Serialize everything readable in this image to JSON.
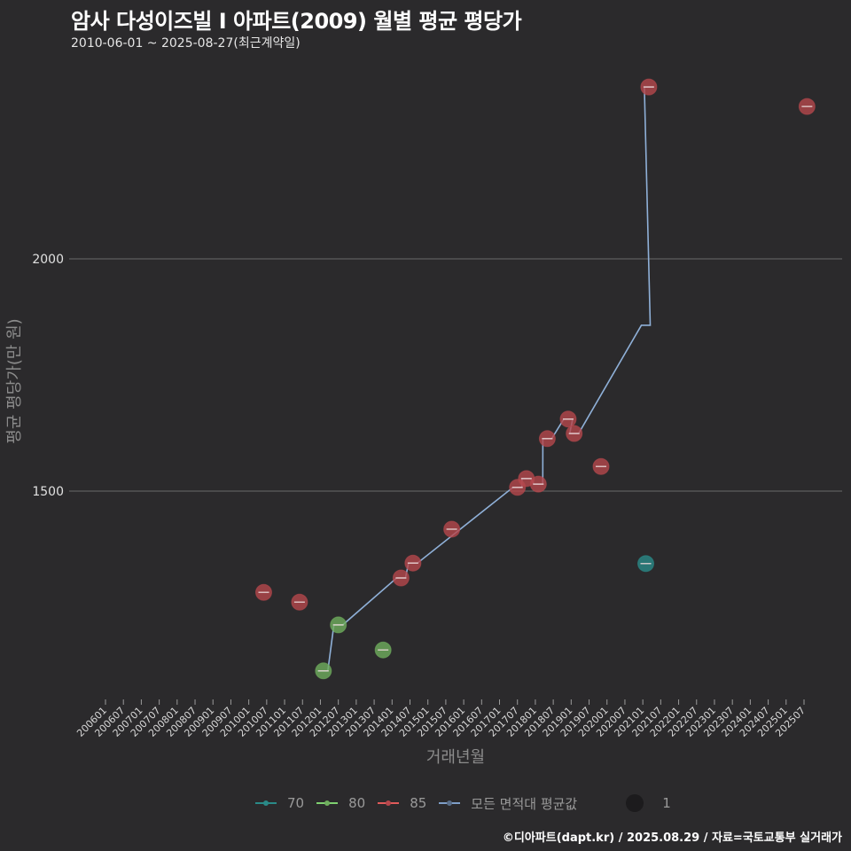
{
  "header": {
    "title": "암사 다성이즈빌 I  아파트(2009) 월별 평균 평당가",
    "subtitle": "2010-06-01 ~ 2025-08-27(최근계약일)"
  },
  "footer": {
    "credit": "©디아파트(dapt.kr) / 2025.08.29 / 자료=국토교통부 실거래가"
  },
  "legend": {
    "items": [
      {
        "label": "70",
        "color": "#2a8a88"
      },
      {
        "label": "80",
        "color": "#7fd070"
      },
      {
        "label": "85",
        "color": "#e05a5a"
      },
      {
        "label": "모든 면적대 평균값",
        "color": "#7f9fc8"
      }
    ],
    "size_label": "1"
  },
  "chart_data": {
    "type": "scatter",
    "title": "암사 다성이즈빌 I  아파트(2009) 월별 평균 평당가",
    "subtitle": "2010-06-01 ~ 2025-08-27(최근계약일)",
    "xlabel": "거래년월",
    "ylabel": "평균 평당가(만 원)",
    "x_ticks": [
      "200601",
      "200607",
      "200701",
      "200707",
      "200801",
      "200807",
      "200901",
      "200907",
      "201001",
      "201007",
      "201101",
      "201107",
      "201201",
      "201207",
      "201301",
      "201307",
      "201401",
      "201407",
      "201501",
      "201507",
      "201601",
      "201607",
      "201701",
      "201707",
      "201801",
      "201807",
      "201901",
      "201907",
      "202001",
      "202007",
      "202101",
      "202107",
      "202201",
      "202207",
      "202301",
      "202307",
      "202401",
      "202407",
      "202501",
      "202507"
    ],
    "y_ticks": [
      1500,
      2000
    ],
    "ylim": [
      1050,
      2450
    ],
    "grid": "horizontal",
    "legend_position": "bottom",
    "series": [
      {
        "name": "70",
        "color": "#2a8a88",
        "points": [
          {
            "x": "202102",
            "y": 1344
          }
        ]
      },
      {
        "name": "80",
        "color": "#6fae5e",
        "points": [
          {
            "x": "201202",
            "y": 1113
          },
          {
            "x": "201207",
            "y": 1212
          },
          {
            "x": "201310",
            "y": 1158
          }
        ]
      },
      {
        "name": "85",
        "color": "#b5474c",
        "points": [
          {
            "x": "201006",
            "y": 1282
          },
          {
            "x": "201106",
            "y": 1261
          },
          {
            "x": "201404",
            "y": 1313
          },
          {
            "x": "201408",
            "y": 1345
          },
          {
            "x": "201509",
            "y": 1418
          },
          {
            "x": "201707",
            "y": 1508
          },
          {
            "x": "201710",
            "y": 1527
          },
          {
            "x": "201802",
            "y": 1515
          },
          {
            "x": "201805",
            "y": 1613
          },
          {
            "x": "201812",
            "y": 1655
          },
          {
            "x": "201902",
            "y": 1624
          },
          {
            "x": "201911",
            "y": 1553
          },
          {
            "x": "202103",
            "y": 2370
          },
          {
            "x": "202508",
            "y": 2328
          }
        ]
      },
      {
        "name": "모든 면적대 평균값",
        "color": "#7f9fc8",
        "type": "line",
        "points": [
          {
            "x": "201202",
            "y": 1113
          },
          {
            "x": "201207",
            "y": 1212
          },
          {
            "x": "201404",
            "y": 1313
          },
          {
            "x": "201408",
            "y": 1345
          },
          {
            "x": "201707",
            "y": 1508
          },
          {
            "x": "201710",
            "y": 1527
          },
          {
            "x": "201802",
            "y": 1515
          },
          {
            "x": "201805",
            "y": 1613
          },
          {
            "x": "201812",
            "y": 1655
          },
          {
            "x": "201902",
            "y": 1624
          },
          {
            "x": "202102",
            "y": 1857
          },
          {
            "x": "202103",
            "y": 2370
          }
        ]
      }
    ]
  }
}
